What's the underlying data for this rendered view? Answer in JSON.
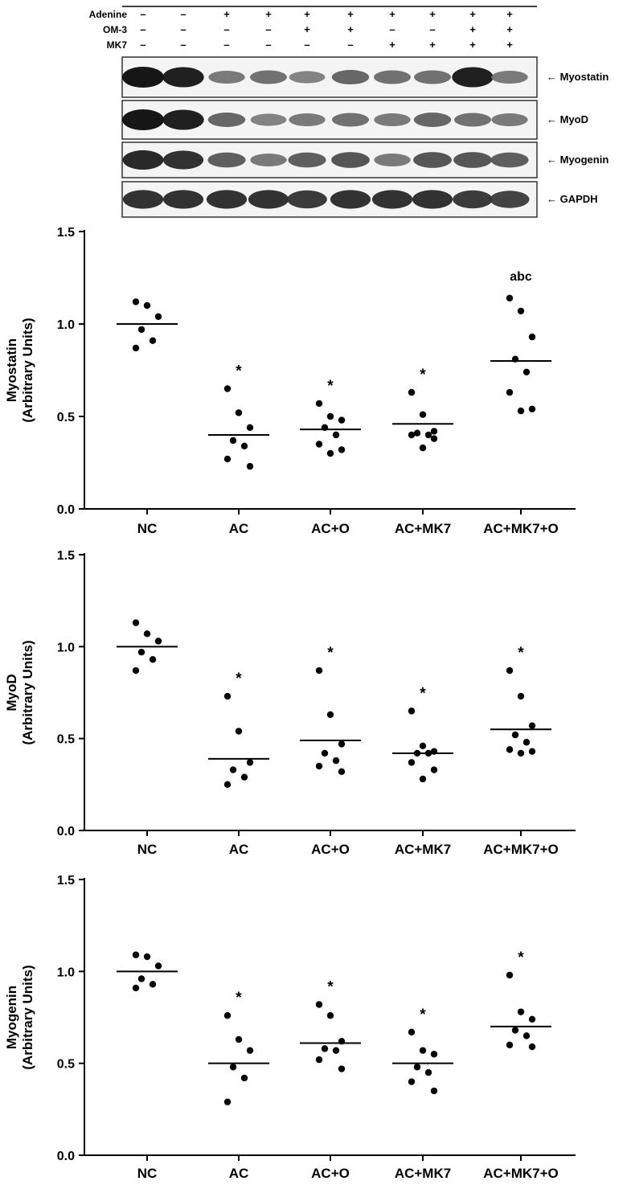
{
  "blot": {
    "conditions": [
      {
        "label": "Adenine",
        "signs": [
          "–",
          "–",
          "+",
          "+",
          "+",
          "+",
          "+",
          "+",
          "+",
          "+"
        ]
      },
      {
        "label": "OM-3",
        "signs": [
          "–",
          "–",
          "–",
          "–",
          "+",
          "+",
          "–",
          "–",
          "+",
          "+"
        ]
      },
      {
        "label": "MK7",
        "signs": [
          "–",
          "–",
          "–",
          "–",
          "–",
          "–",
          "+",
          "+",
          "+",
          "+"
        ]
      }
    ],
    "bands": [
      {
        "label": "← Myostatin",
        "intensity": [
          1.0,
          0.95,
          0.45,
          0.5,
          0.4,
          0.55,
          0.5,
          0.5,
          0.95,
          0.45
        ]
      },
      {
        "label": "← MyoD",
        "intensity": [
          1.0,
          0.95,
          0.55,
          0.4,
          0.45,
          0.5,
          0.45,
          0.55,
          0.5,
          0.45
        ]
      },
      {
        "label": "← Myogenin",
        "intensity": [
          0.9,
          0.85,
          0.6,
          0.45,
          0.6,
          0.65,
          0.45,
          0.65,
          0.65,
          0.6
        ]
      },
      {
        "label": "← GAPDH",
        "intensity": [
          0.85,
          0.85,
          0.85,
          0.85,
          0.8,
          0.85,
          0.85,
          0.85,
          0.8,
          0.75
        ]
      }
    ]
  },
  "chart_data": [
    {
      "type": "scatter",
      "title": "",
      "ylabel_line1": "Myostatin",
      "ylabel_line2": "(Arbitrary Units)",
      "xlabel": "",
      "ylim": [
        0,
        1.5
      ],
      "yticks": [
        "0.0",
        "0.5",
        "1.0",
        "1.5"
      ],
      "categories": [
        "NC",
        "AC",
        "AC+O",
        "AC+MK7",
        "AC+MK7+O"
      ],
      "series": [
        {
          "name": "NC",
          "points": [
            1.12,
            1.1,
            1.04,
            0.97,
            0.91,
            0.87
          ],
          "mean": 1.0,
          "annotation": ""
        },
        {
          "name": "AC",
          "points": [
            0.65,
            0.52,
            0.44,
            0.37,
            0.34,
            0.27,
            0.23
          ],
          "mean": 0.4,
          "annotation": "*"
        },
        {
          "name": "AC+O",
          "points": [
            0.57,
            0.5,
            0.48,
            0.44,
            0.4,
            0.35,
            0.32,
            0.3
          ],
          "mean": 0.43,
          "annotation": "*"
        },
        {
          "name": "AC+MK7",
          "points": [
            0.63,
            0.51,
            0.42,
            0.41,
            0.4,
            0.4,
            0.38,
            0.33
          ],
          "mean": 0.46,
          "annotation": "*"
        },
        {
          "name": "AC+MK7+O",
          "points": [
            1.14,
            1.07,
            0.93,
            0.81,
            0.74,
            0.63,
            0.54,
            0.53
          ],
          "mean": 0.8,
          "annotation": "abc"
        }
      ]
    },
    {
      "type": "scatter",
      "title": "",
      "ylabel_line1": "MyoD",
      "ylabel_line2": "(Arbitrary Units)",
      "xlabel": "",
      "ylim": [
        0,
        1.5
      ],
      "yticks": [
        "0.0",
        "0.5",
        "1.0",
        "1.5"
      ],
      "categories": [
        "NC",
        "AC",
        "AC+O",
        "AC+MK7",
        "AC+MK7+O"
      ],
      "series": [
        {
          "name": "NC",
          "points": [
            1.13,
            1.07,
            1.03,
            0.97,
            0.93,
            0.87
          ],
          "mean": 1.0,
          "annotation": ""
        },
        {
          "name": "AC",
          "points": [
            0.73,
            0.54,
            0.37,
            0.33,
            0.29,
            0.25
          ],
          "mean": 0.39,
          "annotation": "*"
        },
        {
          "name": "AC+O",
          "points": [
            0.87,
            0.63,
            0.47,
            0.42,
            0.38,
            0.35,
            0.32
          ],
          "mean": 0.49,
          "annotation": "*"
        },
        {
          "name": "AC+MK7",
          "points": [
            0.65,
            0.46,
            0.43,
            0.42,
            0.42,
            0.37,
            0.33,
            0.28
          ],
          "mean": 0.42,
          "annotation": "*"
        },
        {
          "name": "AC+MK7+O",
          "points": [
            0.87,
            0.73,
            0.57,
            0.52,
            0.48,
            0.44,
            0.43,
            0.42
          ],
          "mean": 0.55,
          "annotation": "*"
        }
      ]
    },
    {
      "type": "scatter",
      "title": "",
      "ylabel_line1": "Myogenin",
      "ylabel_line2": "(Arbitrary Units)",
      "xlabel": "",
      "ylim": [
        0,
        1.5
      ],
      "yticks": [
        "0.0",
        "0.5",
        "1.0",
        "1.5"
      ],
      "categories": [
        "NC",
        "AC",
        "AC+O",
        "AC+MK7",
        "AC+MK7+O"
      ],
      "series": [
        {
          "name": "NC",
          "points": [
            1.09,
            1.08,
            1.03,
            0.96,
            0.93,
            0.91
          ],
          "mean": 1.0,
          "annotation": ""
        },
        {
          "name": "AC",
          "points": [
            0.76,
            0.63,
            0.57,
            0.48,
            0.42,
            0.29
          ],
          "mean": 0.5,
          "annotation": "*"
        },
        {
          "name": "AC+O",
          "points": [
            0.82,
            0.76,
            0.62,
            0.58,
            0.57,
            0.52,
            0.47
          ],
          "mean": 0.61,
          "annotation": "*"
        },
        {
          "name": "AC+MK7",
          "points": [
            0.67,
            0.57,
            0.55,
            0.48,
            0.45,
            0.4,
            0.35
          ],
          "mean": 0.5,
          "annotation": "*"
        },
        {
          "name": "AC+MK7+O",
          "points": [
            0.98,
            0.78,
            0.74,
            0.68,
            0.65,
            0.6,
            0.59
          ],
          "mean": 0.7,
          "annotation": "*"
        }
      ]
    }
  ]
}
